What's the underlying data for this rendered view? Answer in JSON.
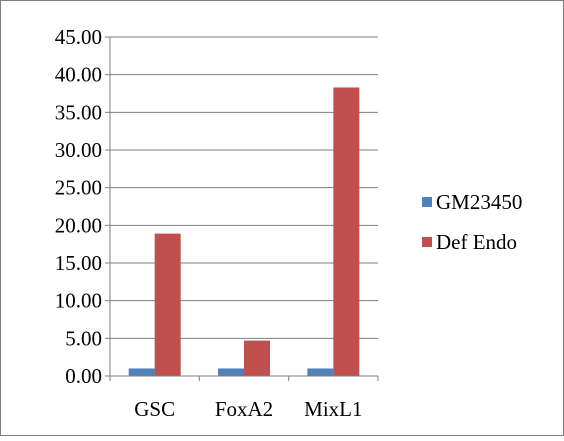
{
  "chart_data": {
    "type": "bar",
    "title": "",
    "xlabel": "",
    "ylabel": "",
    "categories": [
      "GSC",
      "FoxA2",
      "MixL1"
    ],
    "series": [
      {
        "name": "GM23450",
        "color": "#4f81bd",
        "values": [
          1.0,
          1.0,
          1.0
        ]
      },
      {
        "name": "Def Endo",
        "color": "#c0504d",
        "values": [
          18.9,
          4.7,
          38.3
        ]
      }
    ],
    "ylim": [
      0,
      45
    ],
    "yticks": [
      "0.00",
      "5.00",
      "10.00",
      "15.00",
      "20.00",
      "25.00",
      "30.00",
      "35.00",
      "40.00",
      "45.00"
    ],
    "grid": true,
    "legend_position": "right"
  }
}
